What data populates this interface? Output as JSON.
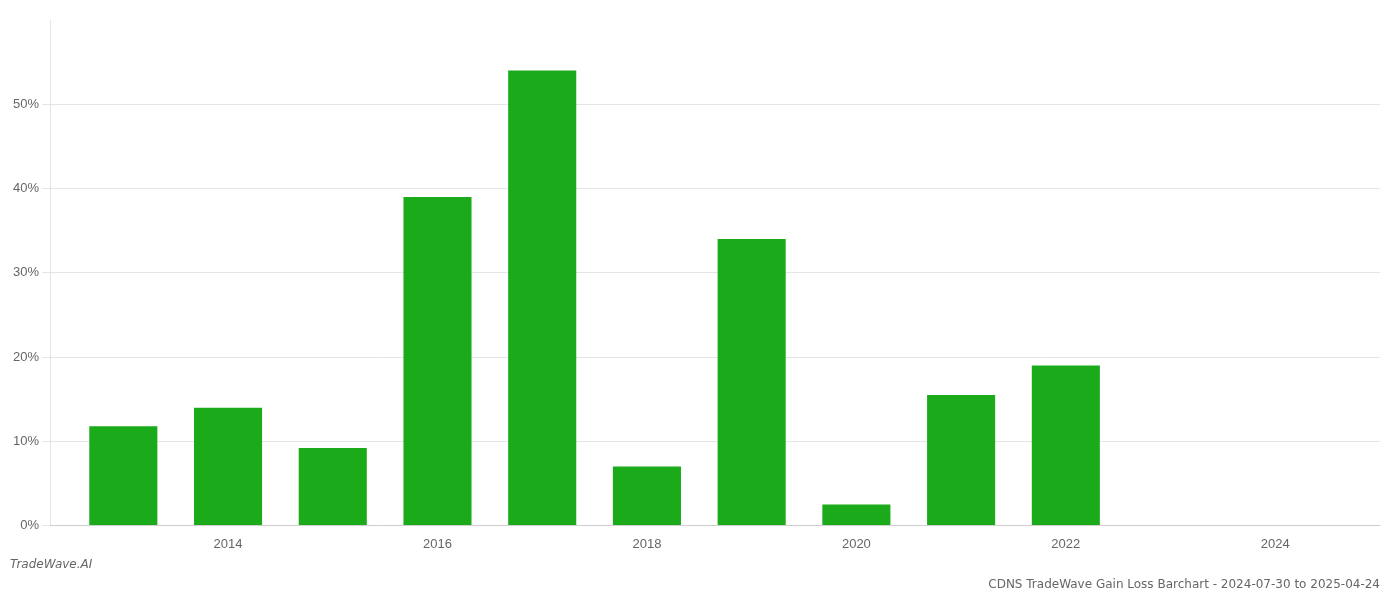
{
  "chart_data": {
    "type": "bar",
    "title": "CDNS TradeWave Gain Loss Barchart - 2024-07-30 to 2025-04-24",
    "annotations": [
      "TradeWave.AI"
    ],
    "x": [
      2013,
      2014,
      2015,
      2016,
      2017,
      2018,
      2019,
      2020,
      2021,
      2022,
      2023
    ],
    "values": [
      0.118,
      0.14,
      0.092,
      0.39,
      0.54,
      0.07,
      0.34,
      0.025,
      0.155,
      0.19,
      0.0
    ],
    "color": "#1aaa1a",
    "xlim": [
      2012.3,
      2025.0
    ],
    "xticks": [
      2014,
      2016,
      2018,
      2020,
      2022,
      2024
    ],
    "ylim": [
      0,
      0.6
    ],
    "yticks": [
      {
        "value": 0.0,
        "label": "0%"
      },
      {
        "value": 0.1,
        "label": "10%"
      },
      {
        "value": 0.2,
        "label": "20%"
      },
      {
        "value": 0.3,
        "label": "30%"
      },
      {
        "value": 0.4,
        "label": "40%"
      },
      {
        "value": 0.5,
        "label": "50%"
      }
    ],
    "grid": true
  }
}
